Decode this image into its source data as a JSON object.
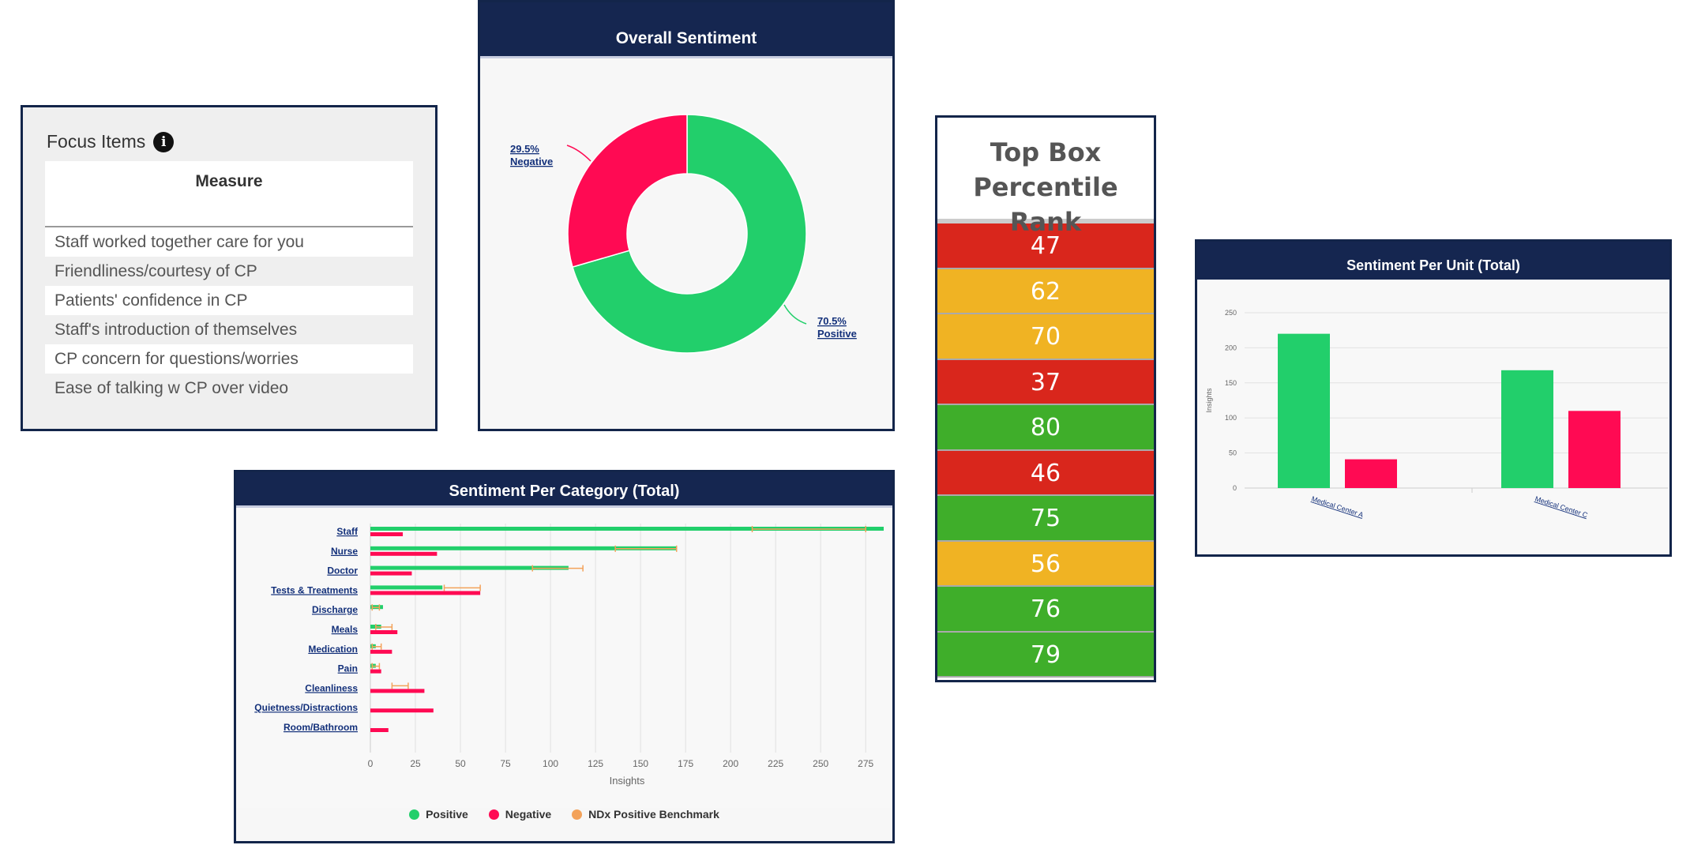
{
  "focus": {
    "title": "Focus Items",
    "info_icon": "i",
    "column_header": "Measure",
    "rows": [
      "Staff worked together care for you",
      "Friendliness/courtesy of CP",
      "Patients' confidence in CP",
      "Staff's introduction of themselves",
      "CP concern for questions/worries",
      "Ease of talking w CP over video"
    ]
  },
  "overall": {
    "title": "Overall Sentiment",
    "negative_label_pct": "29.5%",
    "negative_label_text": "Negative",
    "positive_label_pct": "70.5%",
    "positive_label_text": "Positive"
  },
  "topbox": {
    "title_line1": "Top Box",
    "title_line2": "Percentile Rank",
    "cells": [
      {
        "value": "47",
        "color": "#d9261c"
      },
      {
        "value": "62",
        "color": "#f0b323"
      },
      {
        "value": "70",
        "color": "#f0b323"
      },
      {
        "value": "37",
        "color": "#d9261c"
      },
      {
        "value": "80",
        "color": "#3fae2a"
      },
      {
        "value": "46",
        "color": "#d9261c"
      },
      {
        "value": "75",
        "color": "#3fae2a"
      },
      {
        "value": "56",
        "color": "#f0b323"
      },
      {
        "value": "76",
        "color": "#3fae2a"
      },
      {
        "value": "79",
        "color": "#3fae2a"
      }
    ]
  },
  "unit": {
    "title": "Sentiment Per Unit (Total)"
  },
  "category": {
    "title": "Sentiment Per Category (Total)",
    "legend": [
      "Positive",
      "Negative",
      "NDx Positive Benchmark"
    ]
  },
  "colors": {
    "positive": "#22cf6b",
    "negative": "#ff0a53",
    "benchmark": "#f3a25a",
    "header": "#152650"
  },
  "chart_data": [
    {
      "type": "pie",
      "title": "Overall Sentiment",
      "donut": true,
      "labels": [
        "Negative",
        "Positive"
      ],
      "values": [
        29.5,
        70.5
      ]
    },
    {
      "type": "bar",
      "title": "Sentiment Per Unit (Total)",
      "categories": [
        "Medical Center A",
        "Medical Center C"
      ],
      "category_tick_labels": [
        "Medical Center A",
        "Medical Center C"
      ],
      "series": [
        {
          "name": "Positive",
          "values": [
            220,
            168
          ]
        },
        {
          "name": "Negative",
          "values": [
            41,
            110
          ]
        }
      ],
      "ylabel": "Insights",
      "ylim": [
        0,
        250
      ],
      "yticks": [
        0,
        50,
        100,
        150,
        200,
        250
      ],
      "grid": true
    },
    {
      "type": "bar",
      "orientation": "horizontal",
      "title": "Sentiment Per Category (Total)",
      "categories": [
        "Staff",
        "Nurse",
        "Doctor",
        "Tests & Treatments",
        "Discharge",
        "Meals",
        "Medication",
        "Pain",
        "Cleanliness",
        "Quietness/Distractions",
        "Room/Bathroom"
      ],
      "series": [
        {
          "name": "Positive",
          "values": [
            285,
            170,
            110,
            40,
            7,
            6,
            3,
            3,
            0,
            0,
            0
          ]
        },
        {
          "name": "Negative",
          "values": [
            18,
            37,
            23,
            61,
            0,
            15,
            12,
            6,
            30,
            35,
            10
          ]
        },
        {
          "name": "NDx Positive Benchmark",
          "ranges": [
            [
              212,
              275
            ],
            [
              136,
              170
            ],
            [
              90,
              118
            ],
            [
              41,
              61
            ],
            [
              1,
              5
            ],
            [
              3,
              12
            ],
            [
              1,
              6
            ],
            [
              1,
              5
            ],
            [
              12,
              21
            ],
            null,
            null
          ]
        }
      ],
      "xlabel": "Insights",
      "xlim": [
        0,
        285
      ],
      "xticks": [
        0,
        25,
        50,
        75,
        100,
        125,
        150,
        175,
        200,
        225,
        250,
        275
      ],
      "grid": true,
      "legend": "bottom"
    }
  ]
}
